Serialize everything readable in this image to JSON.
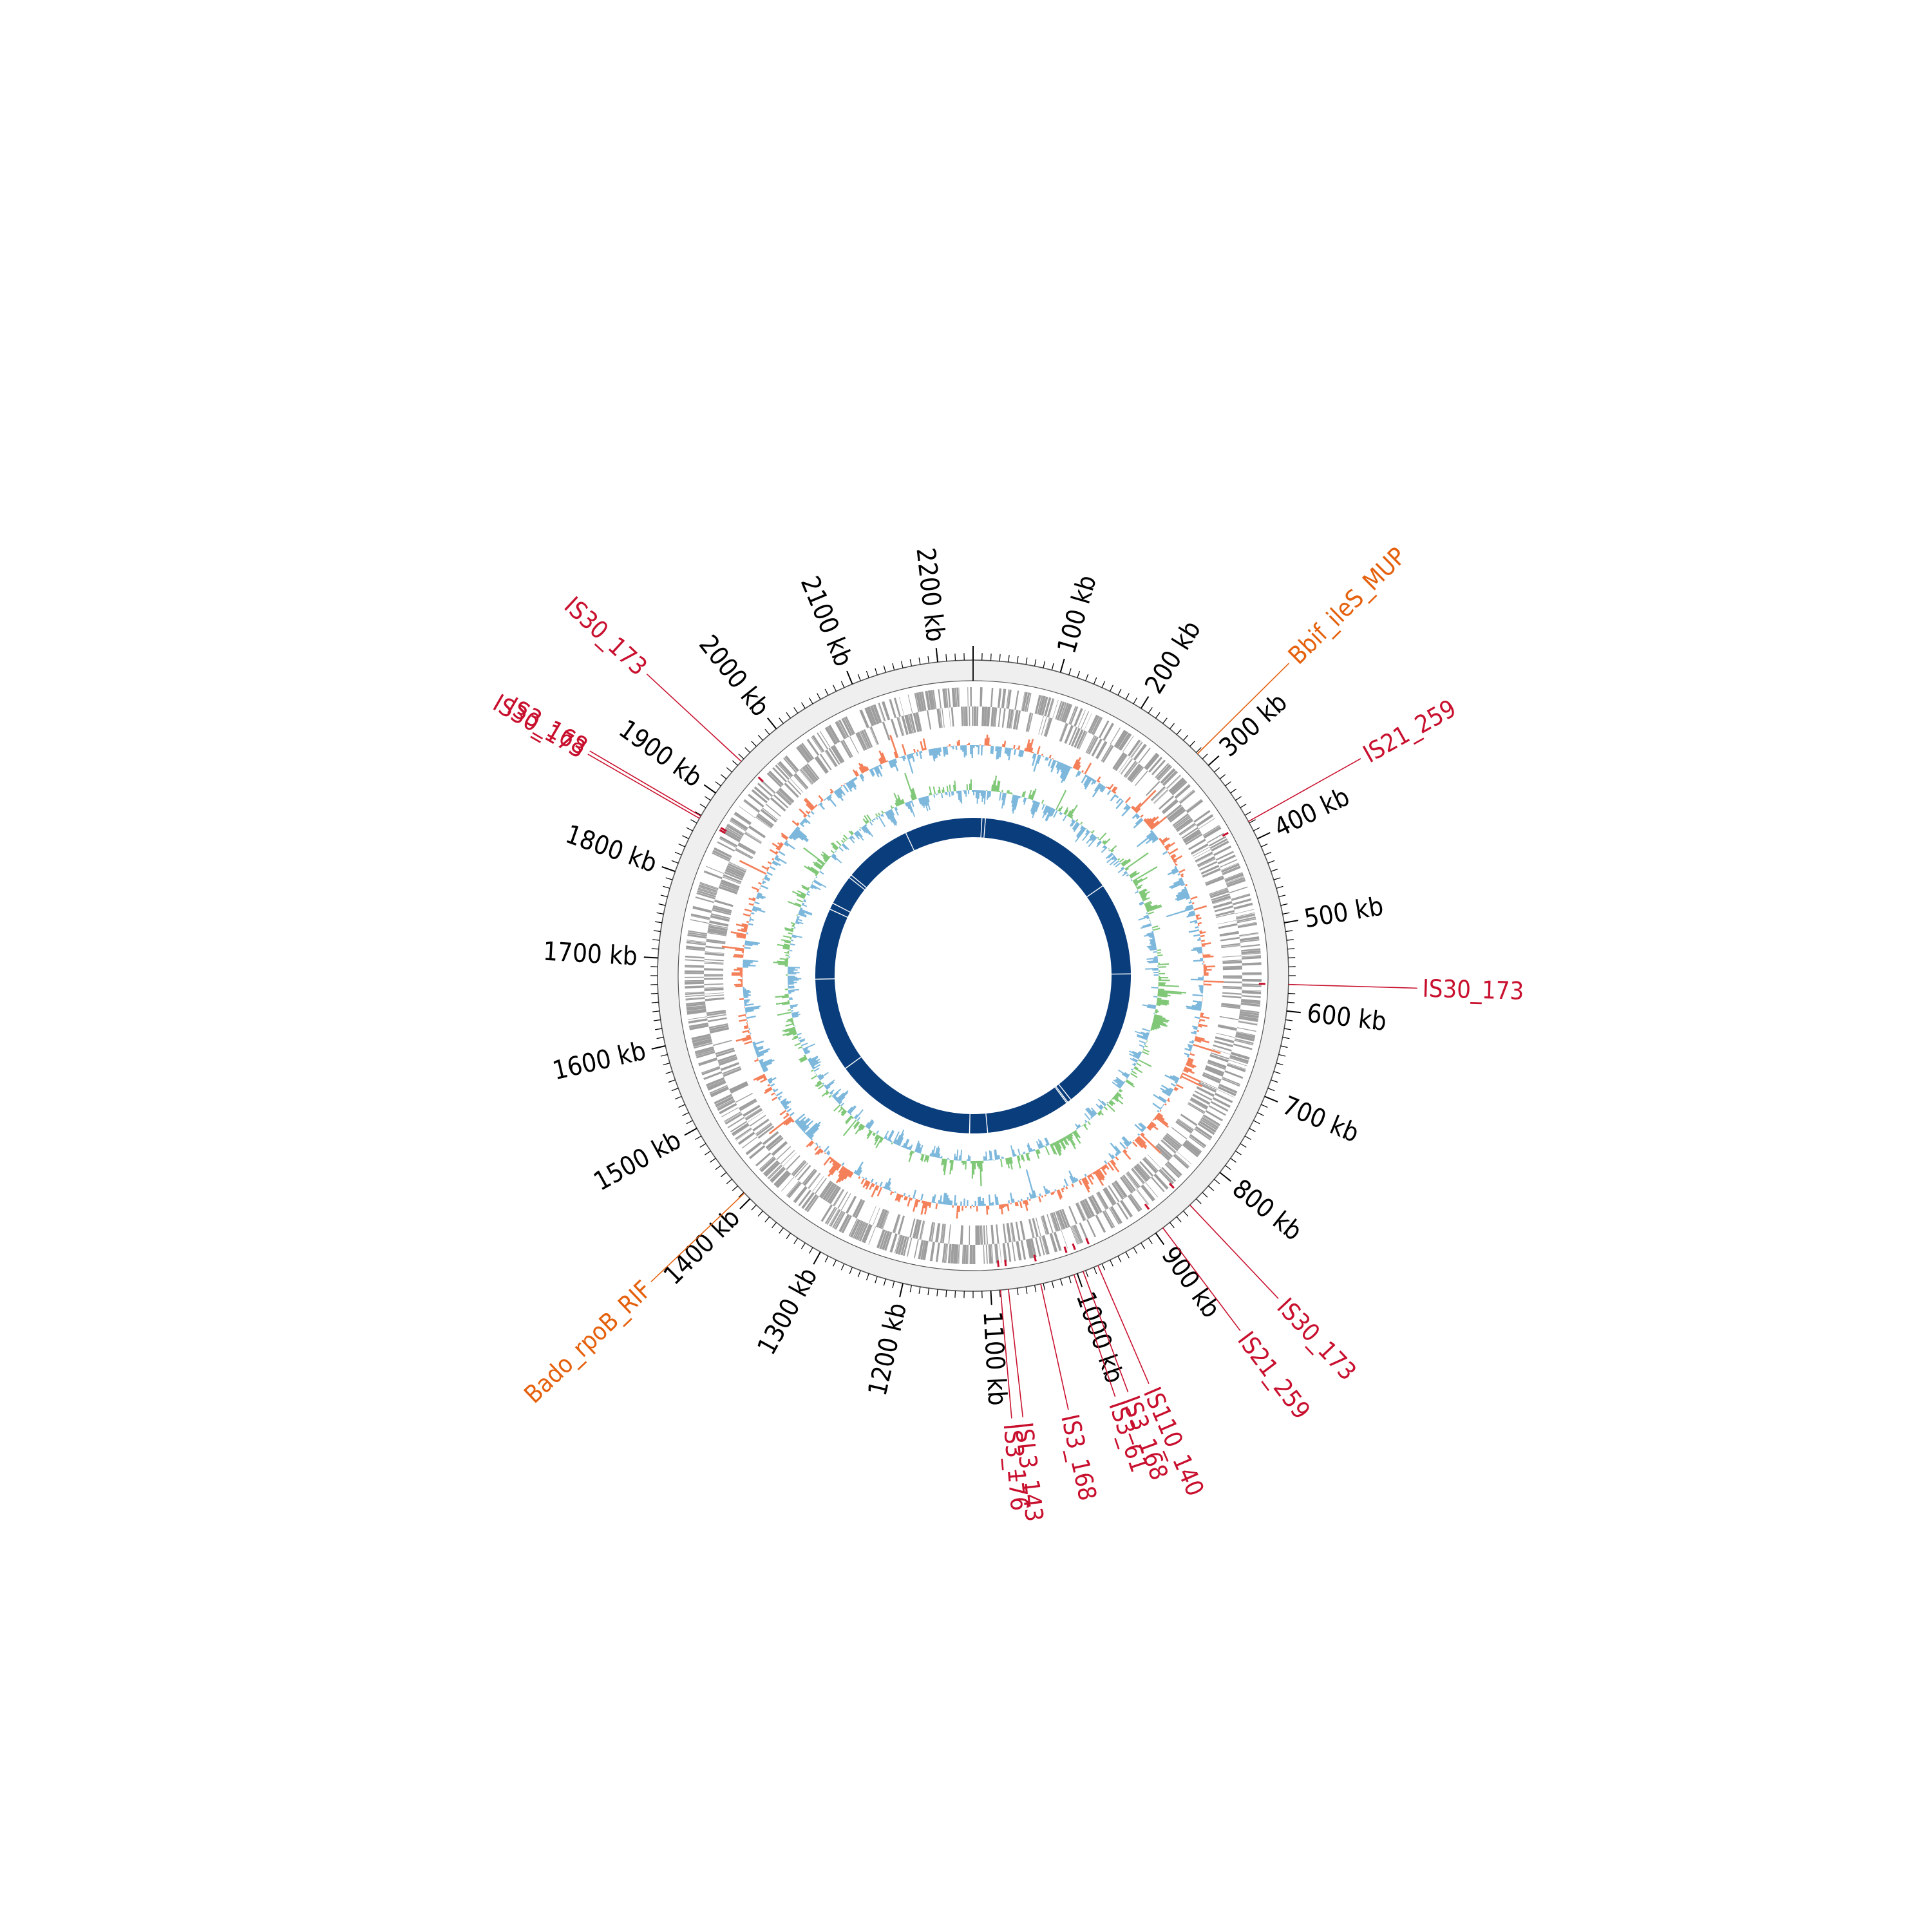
{
  "genome": {
    "length_kb": 2240,
    "tick_major_kb": 100,
    "tick_minor_kb": 10,
    "tick_labels": [
      "100 kb",
      "200 kb",
      "300 kb",
      "400 kb",
      "500 kb",
      "600 kb",
      "700 kb",
      "800 kb",
      "900 kb",
      "1000 kb",
      "1100 kb",
      "1200 kb",
      "1300 kb",
      "1400 kb",
      "1500 kb",
      "1600 kb",
      "1700 kb",
      "1800 kb",
      "1900 kb",
      "2000 kb",
      "2100 kb",
      "2200 kb"
    ]
  },
  "colors": {
    "ruler_fill": "#efefef",
    "ruler_stroke": "#555555",
    "genes": "#9e9e9e",
    "gc_content_positive": "#f4805a",
    "gc_content_negative": "#7db8dc",
    "gc_skew_positive": "#80c878",
    "gc_skew_negative": "#7db8dc",
    "contigs": "#0a3d7c",
    "is_element": "#c8102e",
    "resistance": "#e5600c"
  },
  "is_elements": [
    {
      "label": "IS30_173",
      "position_kb": 1946
    },
    {
      "label": "IS3_168",
      "position_kb": 1869
    },
    {
      "label": "IS30_173",
      "position_kb": 1866
    },
    {
      "label": "IS21_259",
      "position_kb": 378
    },
    {
      "label": "IS30_173",
      "position_kb": 570
    },
    {
      "label": "IS30_173",
      "position_kb": 850
    },
    {
      "label": "IS21_259",
      "position_kb": 890
    },
    {
      "label": "IS110_140",
      "position_kb": 975
    },
    {
      "label": "IS3_168",
      "position_kb": 993
    },
    {
      "label": "IS3_61",
      "position_kb": 1004
    },
    {
      "label": "IS3_168",
      "position_kb": 1043
    },
    {
      "label": "ISL3_143",
      "position_kb": 1080
    },
    {
      "label": "IS3_176",
      "position_kb": 1089
    }
  ],
  "resistance_genes": [
    {
      "label": "Bbif_ileS_MUP",
      "position_kb": 282
    },
    {
      "label": "Bado_rpoB_RIF",
      "position_kb": 1409
    }
  ],
  "contig_gaps_kb": [
    20,
    28,
    344,
    556,
    882,
    891,
    894,
    1087,
    1128,
    1456,
    1672,
    1835,
    1850,
    1919,
    1926,
    2083
  ]
}
